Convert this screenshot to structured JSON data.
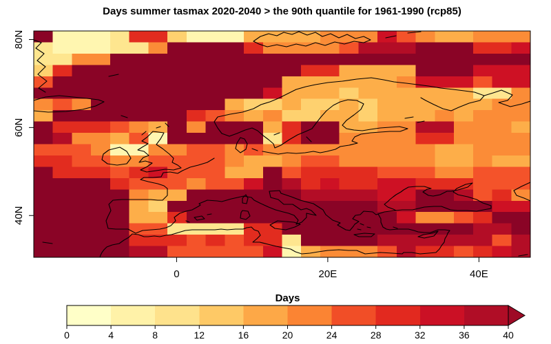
{
  "title": "Days summer tasmax 2020-2040 > the 90th quantile for 1961-1990 (rcp85)",
  "chart_data": {
    "type": "heatmap",
    "title": "Days summer tasmax 2020-2040 > the 90th quantile for 1961-1990 (rcp85)",
    "x_axis": {
      "range": [
        -18.9,
        46.8
      ],
      "ticks": [
        {
          "label": "0",
          "value": 0
        },
        {
          "label": "20E",
          "value": 20
        },
        {
          "label": "40E",
          "value": 40
        }
      ]
    },
    "y_axis": {
      "range": [
        30.5,
        81.95
      ],
      "ticks": [
        {
          "label": "80N",
          "value": 80
        },
        {
          "label": "60N",
          "value": 60
        },
        {
          "label": "40N",
          "value": 40
        }
      ]
    },
    "palette": [
      "#FFFFC8",
      "#FFF6B0",
      "#FEE68F",
      "#FED16F",
      "#FDAE49",
      "#FB8C37",
      "#F4532A",
      "#E22C1F",
      "#CE1124",
      "#B30D26",
      "#8A0426"
    ],
    "grid": {
      "cols": 26,
      "rows": 20,
      "values": [
        [
          10,
          1,
          1,
          1,
          2,
          7,
          7,
          3,
          1,
          1,
          1,
          4,
          4,
          4,
          4,
          5,
          5,
          5,
          8,
          6,
          5,
          4,
          4,
          5,
          5,
          5
        ],
        [
          2,
          1,
          1,
          1,
          2,
          2,
          5,
          10,
          10,
          10,
          10,
          7,
          5,
          5,
          5,
          5,
          6,
          9,
          9,
          9,
          10,
          10,
          10,
          7,
          7,
          8
        ],
        [
          2,
          2,
          5,
          5,
          10,
          10,
          10,
          10,
          10,
          10,
          10,
          10,
          10,
          10,
          10,
          10,
          10,
          10,
          10,
          10,
          10,
          10,
          10,
          10,
          10,
          10
        ],
        [
          3,
          7,
          10,
          10,
          10,
          10,
          10,
          10,
          10,
          10,
          10,
          10,
          10,
          10,
          7,
          7,
          4,
          4,
          4,
          4,
          10,
          10,
          10,
          8,
          8,
          8
        ],
        [
          6,
          10,
          10,
          10,
          10,
          10,
          10,
          10,
          10,
          10,
          10,
          10,
          10,
          4,
          4,
          4,
          4,
          4,
          4,
          5,
          8,
          8,
          8,
          6,
          8,
          8
        ],
        [
          10,
          10,
          10,
          10,
          10,
          10,
          10,
          10,
          10,
          10,
          10,
          10,
          8,
          4,
          4,
          4,
          3,
          4,
          4,
          4,
          4,
          4,
          4,
          2,
          2,
          5
        ],
        [
          5,
          6,
          5,
          10,
          10,
          10,
          10,
          10,
          10,
          10,
          4,
          3,
          3,
          4,
          3,
          3,
          4,
          3,
          4,
          4,
          4,
          4,
          4,
          4,
          5,
          5
        ],
        [
          4,
          10,
          10,
          10,
          10,
          10,
          10,
          10,
          7,
          6,
          5,
          4,
          5,
          3,
          3,
          4,
          4,
          3,
          4,
          4,
          4,
          5,
          4,
          5,
          5,
          5
        ],
        [
          10,
          7,
          7,
          7,
          6,
          5,
          4,
          10,
          5,
          10,
          10,
          10,
          4,
          7,
          10,
          10,
          4,
          4,
          5,
          5,
          9,
          9,
          5,
          5,
          5,
          4
        ],
        [
          10,
          9,
          5,
          5,
          4,
          6,
          1,
          10,
          10,
          10,
          10,
          10,
          2,
          7,
          10,
          10,
          5,
          5,
          5,
          5,
          7,
          7,
          5,
          5,
          5,
          5
        ],
        [
          6,
          6,
          6,
          5,
          1,
          1,
          5,
          5,
          6,
          6,
          5,
          6,
          5,
          5,
          5,
          5,
          5,
          5,
          5,
          5,
          5,
          4,
          4,
          5,
          5,
          5
        ],
        [
          7,
          7,
          6,
          6,
          5,
          5,
          6,
          6,
          6,
          6,
          5,
          4,
          4,
          5,
          6,
          6,
          5,
          5,
          5,
          5,
          5,
          4,
          4,
          5,
          4,
          4
        ],
        [
          10,
          7,
          7,
          7,
          6,
          7,
          8,
          6,
          6,
          6,
          4,
          4,
          10,
          6,
          7,
          7,
          7,
          7,
          6,
          6,
          6,
          5,
          5,
          6,
          6,
          6
        ],
        [
          10,
          10,
          10,
          10,
          7,
          6,
          6,
          6,
          5,
          6,
          6,
          8,
          10,
          9,
          7,
          8,
          7,
          7,
          8,
          8,
          7,
          7,
          7,
          6,
          6,
          6
        ],
        [
          10,
          10,
          10,
          10,
          10,
          5,
          4,
          4,
          10,
          10,
          10,
          10,
          10,
          10,
          9,
          9,
          9,
          9,
          8,
          8,
          10,
          10,
          9,
          6,
          7,
          5
        ],
        [
          10,
          10,
          10,
          10,
          10,
          4,
          3,
          10,
          10,
          10,
          10,
          10,
          10,
          10,
          10,
          10,
          10,
          10,
          9,
          9,
          10,
          10,
          10,
          10,
          8,
          8
        ],
        [
          10,
          10,
          10,
          10,
          10,
          4,
          4,
          7,
          10,
          10,
          10,
          10,
          10,
          10,
          10,
          10,
          10,
          10,
          10,
          8,
          5,
          5,
          6,
          7,
          10,
          10
        ],
        [
          10,
          10,
          10,
          10,
          10,
          6,
          6,
          2,
          2,
          2,
          2,
          7,
          7,
          10,
          10,
          10,
          10,
          10,
          10,
          10,
          10,
          10,
          10,
          9,
          9,
          10
        ],
        [
          10,
          10,
          10,
          10,
          10,
          7,
          7,
          7,
          6,
          7,
          6,
          7,
          7,
          2,
          10,
          10,
          10,
          10,
          9,
          9,
          9,
          9,
          9,
          9,
          6,
          9
        ],
        [
          10,
          10,
          10,
          10,
          10,
          9,
          9,
          6,
          6,
          6,
          6,
          6,
          8,
          1,
          4,
          5,
          5,
          5,
          6,
          9,
          7,
          7,
          6,
          7,
          8,
          9
        ]
      ]
    },
    "colorbar": {
      "label": "Days",
      "segments": [
        "#FFFFC8",
        "#FFF2A8",
        "#FEE28C",
        "#FEC966",
        "#FDA847",
        "#FB8433",
        "#F14E27",
        "#E2291F",
        "#CB1025",
        "#B00D26"
      ],
      "arrow_color": "#9E0A26",
      "tick_labels": [
        "0",
        "4",
        "8",
        "12",
        "16",
        "20",
        "24",
        "28",
        "32",
        "36",
        "40"
      ]
    },
    "coastlines": [
      "49,58 60,62 52,70 64,78 54,88 66,97 55,108 68,118 56,128 66,134",
      "158,111 172,108",
      "49,146 66,141 86,139 106,141 126,143 143,145 151,148 139,154 120,159 96,162 70,163 49,161",
      "176,168 185,171",
      "240,179 245,184",
      "368,60 378,53 390,49 402,52 412,47 424,50 434,46 446,51 458,47 468,53 480,49 492,55 504,50 516,56 528,53 538,58 528,62 514,60 500,64 486,61 472,66 458,62 444,67 430,64 416,68 402,65 388,68 376,64 368,60",
      "560,55 575,52",
      "592,48 611,46",
      "333,198 322,194 316,186 311,177 316,170 334,166 352,163 368,158 379,152 392,148 404,143 416,137 430,130 444,126 458,123 476,120 497,118 518,115 539,113 557,116 572,119 590,121 606,123 622,125 640,128 658,130 674,132 689,134 703,139 697,146 681,150 666,156 655,161 643,158 630,152 618,146 611,142",
      "703,139 716,135 728,131 744,138 737,146 724,149 741,155 758,151 770,147",
      "333,198 344,194 356,189 366,186 374,190 382,197 390,203 397,209 399,215 408,211 420,203 432,196 444,191 453,187 459,179 466,170 474,161 484,153 494,148 505,145 518,146 528,151 524,159 514,167 503,175 497,182 503,187 514,189 526,190 538,188 552,186 566,185 580,184 592,187 581,191 566,191 552,192 538,193 524,195 515,199 511,205 519,208 507,211 494,213 487,217 475,220 465,222 455,220 443,222 430,223 417,222 404,224 392,222 381,220",
      "349,200 344,208 342,216 349,222 357,217 359,209 355,202 349,200",
      "366,216 374,219",
      "445,199 452,206",
      "588,172 600,170",
      "606,178 616,176",
      "398,196 406,193",
      "222,191 238,193 233,202 227,210 236,216 246,224 252,230 250,236 258,240 263,244 252,247 240,246 227,248 213,250 204,247 214,242 221,237 211,234 202,236 208,229 216,226 209,220 200,218 208,213 215,209 206,205 214,199 222,191",
      "206,196 212,191",
      "227,186 233,184",
      "174,214 184,220 190,230 184,238 170,240 156,238 148,232 150,224 158,218 166,216 174,214",
      "311,230 301,236 288,240 276,243 265,248 258,252 247,250 237,251 234,257 222,258 209,258 204,261 215,264 229,267 238,270 243,274 243,284 236,291 229,291 219,290 206,290 190,290 177,290 164,291 158,297 161,306 157,314 154,321 157,332 168,333 186,333 197,339 207,335 220,334 232,333 241,331 248,328 255,321 253,316 261,310 270,307 279,305 288,300 291,298 289,296 301,291 315,292 322,293 329,291 336,289 345,287 354,285 365,287 369,291 377,295 390,301 400,305 411,308 419,310 427,313 433,320 430,326 438,323 445,316 445,310 459,313 452,306 445,303 437,305 425,297 412,297 404,290 393,287 391,278 406,277 408,281 423,286 436,291 447,294 455,296 469,305 473,312 478,316 483,320 494,324 490,327 502,334 508,335 513,329 515,326 521,322 512,318 516,313 523,312 528,307 541,308 546,312 558,308 566,307 574,306 584,305 599,305 616,301 630,300 641,300 654,305 664,306 678,306 692,307 702,305 713,303 713,299 701,295 692,290 679,286 665,283 658,279 663,274 676,268 686,266 679,272 665,276 655,278 649,278 639,283 629,285 622,284 614,279 620,275 626,274 616,271 604,271 593,272 586,276 582,279 575,283 571,286 566,290 563,293 558,297 563,301 571,304 575,306",
      "549,311 553,318 553,323 556,330 561,333 566,334 578,333 593,333 601,335 607,337 616,338 625,338 636,334 646,334 653,335 650,339 649,342 646,347 645,352 641,357 638,362 633,367 622,368 610,369 598,367 586,367 584,369 570,368 552,367 541,368 530,369 518,364 506,364 492,363 476,364 462,366 450,368 438,369 429,366 422,362 411,360 401,358 389,355 377,352 367,352 373,347 378,342 375,336 369,334 365,330 358,331 353,333 342,333 330,334 321,333 312,334 301,334 290,334 279,334 269,335 259,338 249,341 241,342 232,344 224,343 215,344 209,344 201,341 192,340 187,345 180,349 173,354 163,356 155,359 151,363 148,367 146,371 145,374",
      "352,288 357,283 360,288 358,296 352,295 352,288",
      "352,306 360,307 363,314 357,319 349,317 350,309 352,306",
      "282,316 293,314 297,318 286,320 282,316",
      "301,312 307,311",
      "270,321 275,323",
      "392,327 403,321 427,323 436,326 428,330 415,334 399,332 392,327",
      "514,341 529,339 544,340 539,344 521,344 514,341",
      "607,344 615,341 627,339 636,336 630,343 616,346 607,344",
      "571,330 577,332",
      "523,325 528,327",
      "533,330 538,331",
      "519,333 524,334",
      "62,352 76,354",
      "770,265 757,271 746,277 750,284 761,288 770,292",
      "753,372 766,370"
    ]
  }
}
